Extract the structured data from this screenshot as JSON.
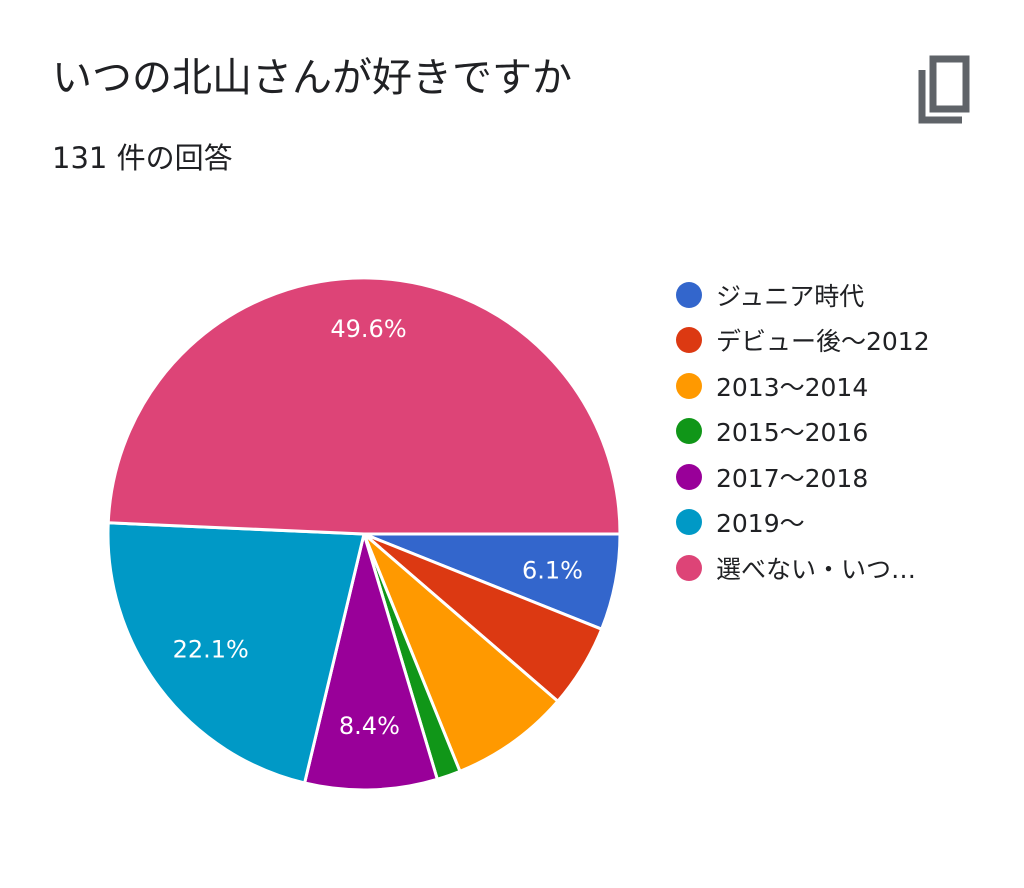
{
  "header": {
    "title": "いつの北山さんが好きですか",
    "subtitle": "131 件の回答",
    "copy_icon": "copy-icon"
  },
  "chart_data": {
    "type": "pie",
    "categories": [
      "ジュニア時代",
      "デビュー後〜2012",
      "2013〜2014",
      "2015〜2016",
      "2017〜2018",
      "2019〜",
      "選べない・いつ…"
    ],
    "values": [
      6.1,
      5.3,
      7.6,
      1.5,
      8.4,
      22.1,
      49.6
    ],
    "data_labels": [
      "6.1%",
      "",
      "",
      "",
      "8.4%",
      "22.1%",
      "49.6%"
    ],
    "colors": [
      "#3366cc",
      "#dc3912",
      "#ff9900",
      "#109618",
      "#990099",
      "#0099c6",
      "#dd4477"
    ],
    "start_angle_deg": 90,
    "direction": "clockwise",
    "legend_position": "right"
  }
}
